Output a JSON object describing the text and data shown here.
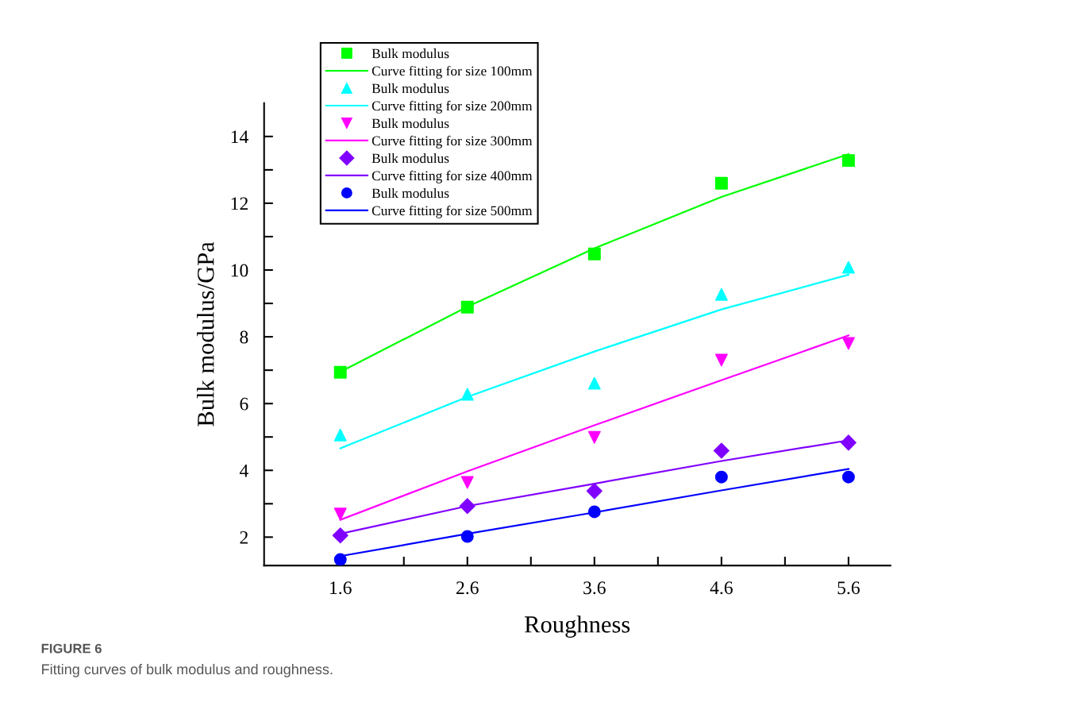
{
  "chart_data": {
    "type": "scatter",
    "xlabel": "Roughness",
    "ylabel": "Bulk modulus/GPa",
    "x": [
      1.6,
      2.6,
      3.6,
      4.6,
      5.6
    ],
    "series": [
      {
        "name": "Bulk modulus",
        "marker": "square",
        "color": "#00ff00",
        "values": [
          6.94,
          8.89,
          10.48,
          12.6,
          13.28
        ]
      },
      {
        "name": "Curve fitting for size 100mm",
        "type": "line",
        "color": "#00ff00",
        "values": [
          6.95,
          8.9,
          10.65,
          12.19,
          13.47
        ]
      },
      {
        "name": "Bulk modulus",
        "marker": "triangle",
        "color": "#00ffff",
        "values": [
          5.06,
          6.28,
          6.61,
          9.27,
          10.08
        ]
      },
      {
        "name": "Curve fitting for size 200mm",
        "type": "line",
        "color": "#00ffff",
        "values": [
          4.66,
          6.2,
          7.56,
          8.82,
          9.86
        ]
      },
      {
        "name": "Bulk modulus",
        "marker": "triangle_down",
        "color": "#ff00ff",
        "values": [
          2.69,
          3.64,
          4.99,
          7.3,
          7.8
        ]
      },
      {
        "name": "Curve fitting for size 300mm",
        "type": "line",
        "color": "#ff00ff",
        "values": [
          2.52,
          3.97,
          5.35,
          6.7,
          8.04
        ]
      },
      {
        "name": "Bulk modulus",
        "marker": "diamond",
        "color": "#8000ff",
        "values": [
          2.05,
          2.93,
          3.38,
          4.59,
          4.83
        ]
      },
      {
        "name": "Curve fitting for size 400mm",
        "type": "line",
        "color": "#8000ff",
        "values": [
          2.1,
          2.93,
          3.6,
          4.28,
          4.9
        ]
      },
      {
        "name": "Bulk modulus",
        "marker": "circle",
        "color": "#0000ff",
        "values": [
          1.33,
          2.02,
          2.76,
          3.8,
          3.8
        ]
      },
      {
        "name": "Curve fitting for size 500mm",
        "type": "line",
        "color": "#0000ff",
        "values": [
          1.43,
          2.1,
          2.74,
          3.4,
          4.04
        ]
      }
    ],
    "xlim": [
      1.0,
      5.93
    ],
    "ylim": [
      1.15,
      15
    ],
    "xticks": [
      1.6,
      {
        "value": 2.1,
        "label": null
      },
      2.6,
      {
        "value": 3.1,
        "label": null
      },
      3.6,
      {
        "value": 4.1,
        "label": null
      },
      4.6,
      {
        "value": 5.1,
        "label": null
      },
      5.6
    ],
    "yticks": [
      2,
      {
        "value": 3,
        "label": null
      },
      4,
      {
        "value": 5,
        "label": null
      },
      6,
      {
        "value": 7,
        "label": null
      },
      8,
      {
        "value": 9,
        "label": null
      },
      10,
      {
        "value": 11,
        "label": null
      },
      12,
      {
        "value": 13,
        "label": null
      },
      14
    ],
    "grid": false,
    "legend": "top left",
    "annotations": [
      "FIGURE 6",
      "Fitting curves of bulk modulus and roughness."
    ]
  }
}
